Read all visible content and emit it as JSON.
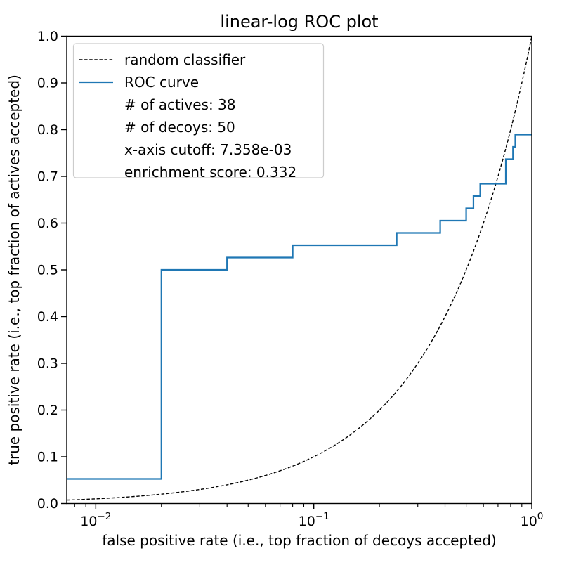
{
  "title": "linear-log ROC plot",
  "axes": {
    "xlabel": "false positive rate (i.e., top fraction of decoys accepted)",
    "ylabel": "true positive rate (i.e., top fraction of actives accepted)",
    "x_scale": "log",
    "x_min": 0.007358,
    "x_max": 1.0,
    "y_min": 0.0,
    "y_max": 1.0,
    "x_major_ticks": [
      {
        "value": 0.01,
        "base": "10",
        "exp": "−2"
      },
      {
        "value": 0.1,
        "base": "10",
        "exp": "−1"
      },
      {
        "value": 1.0,
        "base": "10",
        "exp": "0"
      }
    ],
    "x_minor_tick_values": [
      0.008,
      0.009,
      0.02,
      0.03,
      0.04,
      0.05,
      0.06,
      0.07,
      0.08,
      0.09,
      0.2,
      0.3,
      0.4,
      0.5,
      0.6,
      0.7,
      0.8,
      0.9
    ],
    "y_ticks": [
      {
        "value": 0.0,
        "label": "0.0"
      },
      {
        "value": 0.1,
        "label": "0.1"
      },
      {
        "value": 0.2,
        "label": "0.2"
      },
      {
        "value": 0.3,
        "label": "0.3"
      },
      {
        "value": 0.4,
        "label": "0.4"
      },
      {
        "value": 0.5,
        "label": "0.5"
      },
      {
        "value": 0.6,
        "label": "0.6"
      },
      {
        "value": 0.7,
        "label": "0.7"
      },
      {
        "value": 0.8,
        "label": "0.8"
      },
      {
        "value": 0.9,
        "label": "0.9"
      },
      {
        "value": 1.0,
        "label": "1.0"
      }
    ]
  },
  "legend": {
    "items": [
      {
        "label": "random classifier",
        "sample": "dashed-line",
        "color": "#000000"
      },
      {
        "label": "ROC curve",
        "sample": "solid-line",
        "color": "#1f77b4"
      },
      {
        "label": "# of actives: 38",
        "sample": "none",
        "color": null
      },
      {
        "label": "# of decoys: 50",
        "sample": "none",
        "color": null
      },
      {
        "label": "x-axis cutoff: 7.358e-03",
        "sample": "none",
        "color": null
      },
      {
        "label": "enrichment score: 0.332",
        "sample": "none",
        "color": null
      }
    ]
  },
  "colors": {
    "roc_curve": "#1f77b4",
    "random_classifier": "#000000",
    "spine": "#000000",
    "legend_border": "#cccccc",
    "background": "#ffffff"
  },
  "chart_data": {
    "type": "line",
    "title": "linear-log ROC plot",
    "xlabel": "false positive rate (i.e., top fraction of decoys accepted)",
    "ylabel": "true positive rate (i.e., top fraction of actives accepted)",
    "x_scale": "log",
    "xlim": [
      0.007358,
      1.0
    ],
    "ylim": [
      0.0,
      1.0
    ],
    "grid": false,
    "legend_position": "upper left",
    "n_actives": 38,
    "n_decoys": 50,
    "x_axis_cutoff": 0.007358,
    "enrichment_score": 0.332,
    "series": [
      {
        "name": "random classifier",
        "style": "dashed",
        "color": "#000000",
        "relation": "identity y = x",
        "points": [
          [
            0.007358,
            0.007358
          ],
          [
            1.0,
            1.0
          ]
        ]
      },
      {
        "name": "ROC curve",
        "style": "step",
        "color": "#1f77b4",
        "points": [
          [
            0.007358,
            0.0526
          ],
          [
            0.02,
            0.0526
          ],
          [
            0.02,
            0.5
          ],
          [
            0.04,
            0.5
          ],
          [
            0.04,
            0.5263
          ],
          [
            0.08,
            0.5263
          ],
          [
            0.08,
            0.5526
          ],
          [
            0.24,
            0.5526
          ],
          [
            0.24,
            0.5789
          ],
          [
            0.38,
            0.5789
          ],
          [
            0.38,
            0.6053
          ],
          [
            0.5,
            0.6053
          ],
          [
            0.5,
            0.6316
          ],
          [
            0.54,
            0.6316
          ],
          [
            0.54,
            0.6579
          ],
          [
            0.58,
            0.6579
          ],
          [
            0.58,
            0.6842
          ],
          [
            0.76,
            0.6842
          ],
          [
            0.76,
            0.7368
          ],
          [
            0.82,
            0.7368
          ],
          [
            0.82,
            0.7632
          ],
          [
            0.84,
            0.7632
          ],
          [
            0.84,
            0.7895
          ],
          [
            1.0,
            0.7895
          ]
        ]
      }
    ]
  }
}
